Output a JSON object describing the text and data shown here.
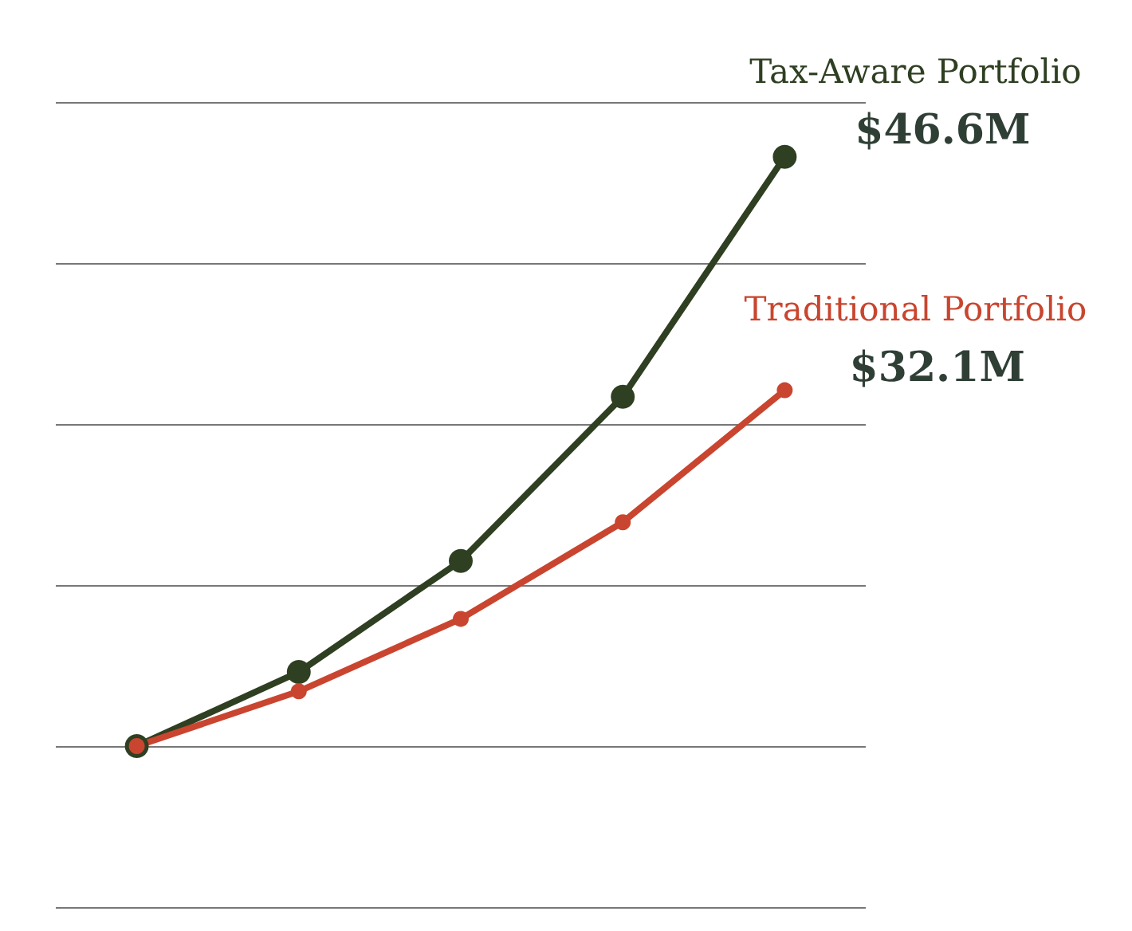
{
  "chart_data": {
    "type": "line",
    "categories": [
      null,
      null,
      null,
      null,
      null
    ],
    "series": [
      {
        "name": "Tax-Aware Portfolio",
        "color": "#2f3f22",
        "values": [
          10,
          14.6,
          21.5,
          31.7,
          46.6
        ],
        "value_labels": [
          null,
          null,
          null,
          null,
          "$46.6M"
        ]
      },
      {
        "name": "Traditional Portfolio",
        "color": "#c9452f",
        "values": [
          10,
          13.4,
          17.9,
          23.9,
          32.1
        ],
        "value_labels": [
          null,
          null,
          null,
          null,
          "$32.1M"
        ]
      }
    ],
    "ylim": [
      0,
      50
    ],
    "yticks": [
      0,
      10,
      20,
      30,
      40,
      50
    ],
    "grid": "y",
    "tick_labels": false,
    "marker": "circle"
  }
}
